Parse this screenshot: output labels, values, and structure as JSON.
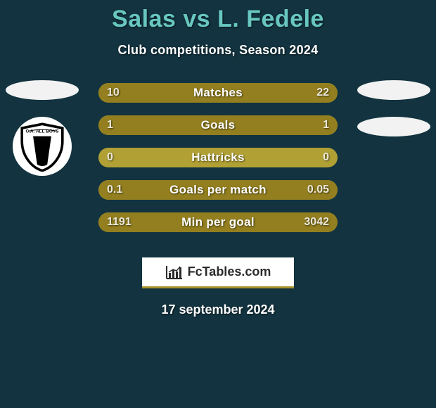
{
  "colors": {
    "bg": "#12333f",
    "title": "#68c7c1",
    "subtitle": "#ffffff",
    "ellipse": "#f2f2f2",
    "logo_bg": "#ffffff",
    "bar_track": "#b1a034",
    "bar_fill": "#937f1f",
    "bar_label": "#ffffff",
    "bar_val": "#eae7d8",
    "footer_bg": "#ffffff",
    "footer_border": "#a8942c",
    "footer_text": "#2b2b2b",
    "date": "#ffffff"
  },
  "title": "Salas vs L. Fedele",
  "subtitle": "Club competitions, Season 2024",
  "left_badge": {
    "text_top": "C.A. ALL BOYS"
  },
  "bars": [
    {
      "label": "Matches",
      "left_val": "10",
      "right_val": "22",
      "left_pct": 31,
      "right_pct": 69
    },
    {
      "label": "Goals",
      "left_val": "1",
      "right_val": "1",
      "left_pct": 50,
      "right_pct": 50
    },
    {
      "label": "Hattricks",
      "left_val": "0",
      "right_val": "0",
      "left_pct": 0,
      "right_pct": 0
    },
    {
      "label": "Goals per match",
      "left_val": "0.1",
      "right_val": "0.05",
      "left_pct": 66,
      "right_pct": 34
    },
    {
      "label": "Min per goal",
      "left_val": "1191",
      "right_val": "3042",
      "left_pct": 28,
      "right_pct": 72
    }
  ],
  "footer_brand": "FcTables.com",
  "date": "17 september 2024"
}
